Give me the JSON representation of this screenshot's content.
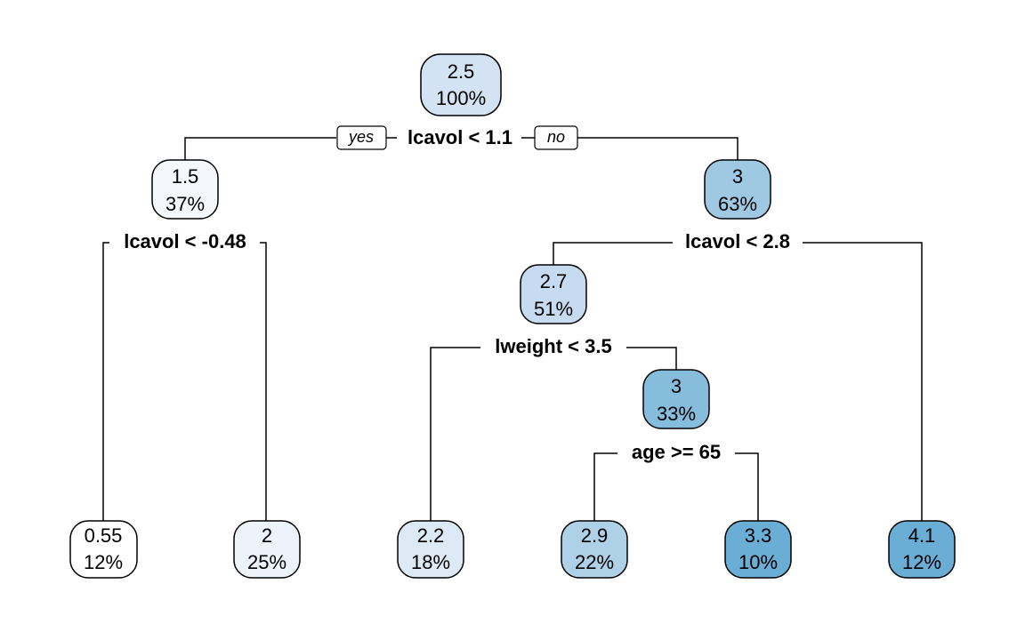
{
  "tree": {
    "nodes": [
      {
        "id": "n1",
        "value": "2.5",
        "percent": "100%",
        "color": "#d3e3f3"
      },
      {
        "id": "n2",
        "value": "1.5",
        "percent": "37%",
        "color": "#f4f8fd"
      },
      {
        "id": "n3",
        "value": "3",
        "percent": "63%",
        "color": "#9fc9e3"
      },
      {
        "id": "n6",
        "value": "2.7",
        "percent": "51%",
        "color": "#c6dbef"
      },
      {
        "id": "n13",
        "value": "3",
        "percent": "33%",
        "color": "#86bcdc"
      },
      {
        "id": "l1",
        "value": "0.55",
        "percent": "12%",
        "color": "#ffffff"
      },
      {
        "id": "l2",
        "value": "2",
        "percent": "25%",
        "color": "#ecf3fb"
      },
      {
        "id": "l3",
        "value": "2.2",
        "percent": "18%",
        "color": "#dde9f5"
      },
      {
        "id": "l4",
        "value": "2.9",
        "percent": "22%",
        "color": "#afd1e7"
      },
      {
        "id": "l5",
        "value": "3.3",
        "percent": "10%",
        "color": "#6aadd5"
      },
      {
        "id": "l6",
        "value": "4.1",
        "percent": "12%",
        "color": "#6aadd5"
      }
    ],
    "splits": [
      {
        "id": "s1",
        "label": "lcavol < 1.1"
      },
      {
        "id": "s2",
        "label": "lcavol < -0.48"
      },
      {
        "id": "s3",
        "label": "lcavol < 2.8"
      },
      {
        "id": "s4",
        "label": "lweight < 3.5"
      },
      {
        "id": "s5",
        "label": "age >= 65"
      }
    ],
    "branch_labels": {
      "yes": "yes",
      "no": "no"
    }
  }
}
